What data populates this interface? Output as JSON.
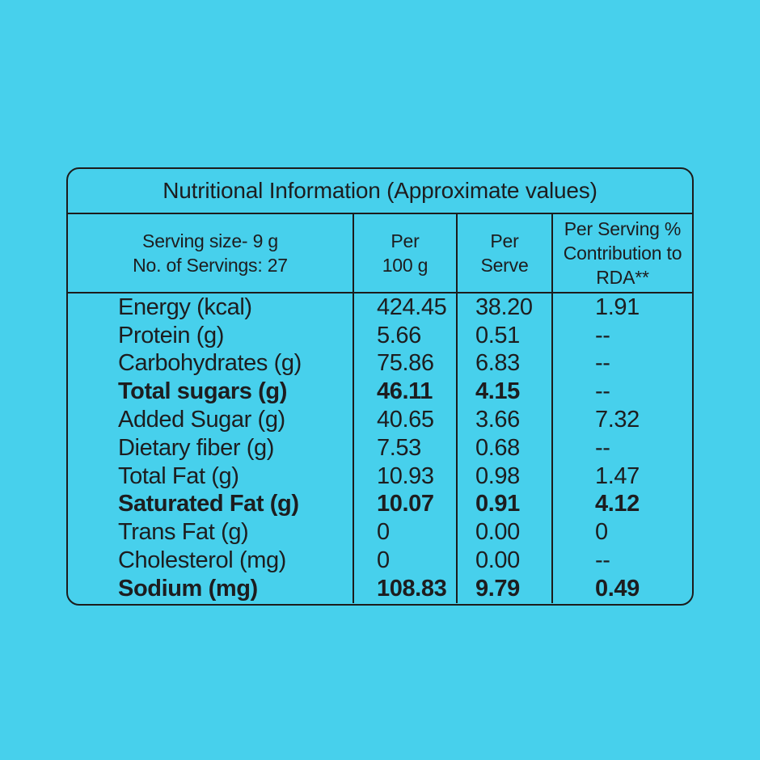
{
  "colors": {
    "background": "#47D0EC",
    "ink": "#1d1d1f",
    "border": "#1c1c1c"
  },
  "table": {
    "title": "Nutritional Information (Approximate values)",
    "header": {
      "serving": {
        "line1": "Serving size- 9 g",
        "line2": "No. of Servings: 27"
      },
      "per_100g": {
        "line1": "Per",
        "line2": "100 g"
      },
      "per_serve": {
        "line1": "Per",
        "line2": "Serve"
      },
      "rda": {
        "line1": "Per Serving %",
        "line2": "Contribution to",
        "line3": "RDA**"
      }
    },
    "rows": [
      {
        "label": "Energy (kcal)",
        "per_100g": "424.45",
        "per_serve": "38.20",
        "rda": "1.91",
        "bold": false
      },
      {
        "label": "Protein (g)",
        "per_100g": "5.66",
        "per_serve": "0.51",
        "rda": "--",
        "bold": false
      },
      {
        "label": "Carbohydrates (g)",
        "per_100g": "75.86",
        "per_serve": "6.83",
        "rda": "--",
        "bold": false
      },
      {
        "label": "Total sugars (g)",
        "per_100g": "46.11",
        "per_serve": "4.15",
        "rda": "--",
        "bold": true
      },
      {
        "label": "Added Sugar (g)",
        "per_100g": "40.65",
        "per_serve": "3.66",
        "rda": "7.32",
        "bold": false
      },
      {
        "label": "Dietary fiber (g)",
        "per_100g": "7.53",
        "per_serve": "0.68",
        "rda": "--",
        "bold": false
      },
      {
        "label": "Total Fat (g)",
        "per_100g": "10.93",
        "per_serve": "0.98",
        "rda": "1.47",
        "bold": false
      },
      {
        "label": "Saturated Fat (g)",
        "per_100g": "10.07",
        "per_serve": "0.91",
        "rda": "4.12",
        "bold": true
      },
      {
        "label": "Trans Fat (g)",
        "per_100g": "0",
        "per_serve": "0.00",
        "rda": "0",
        "bold": false
      },
      {
        "label": "Cholesterol (mg)",
        "per_100g": "0",
        "per_serve": "0.00",
        "rda": "--",
        "bold": false
      },
      {
        "label": "Sodium (mg)",
        "per_100g": "108.83",
        "per_serve": "9.79",
        "rda": "0.49",
        "bold": true
      }
    ]
  }
}
